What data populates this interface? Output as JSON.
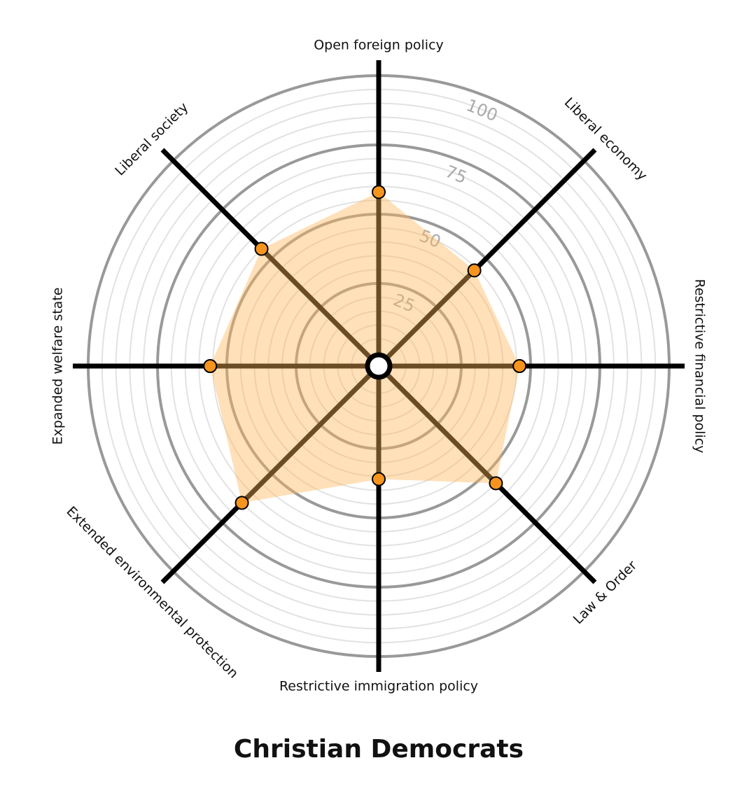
{
  "chart_data": {
    "type": "radar",
    "title": "Christian Democrats",
    "categories": [
      "Open foreign policy",
      "Liberal economy",
      "Restrictive financial policy",
      "Law & Order",
      "Restrictive immigration policy",
      "Extended environmental protection",
      "Expanded welfare state",
      "Liberal society"
    ],
    "series": [
      {
        "name": "Christian Democrats",
        "color": "#f7941d",
        "fill": "#ffb555",
        "values": [
          58,
          44,
          46,
          55,
          36,
          65,
          56,
          55
        ]
      }
    ],
    "ylim": [
      0,
      100
    ],
    "yticks": [
      25,
      50,
      75,
      100
    ],
    "minor_ticks": [
      5,
      10,
      15,
      20,
      30,
      35,
      40,
      45,
      55,
      60,
      65,
      70,
      80,
      85,
      90,
      95
    ],
    "grid": true
  }
}
